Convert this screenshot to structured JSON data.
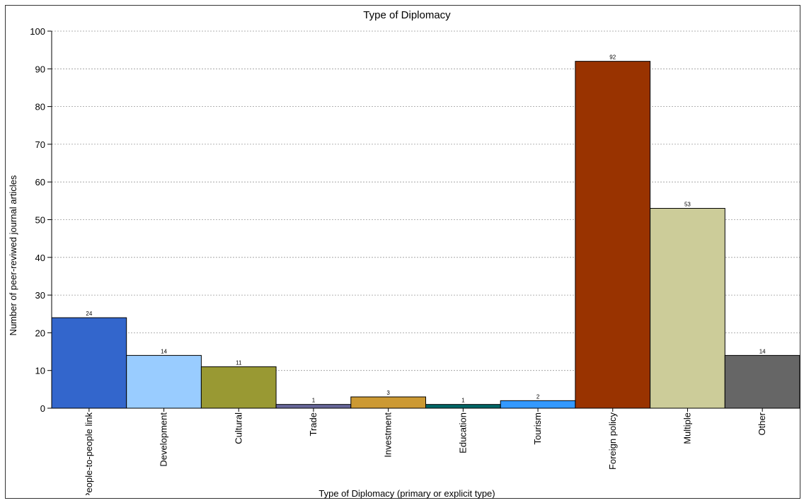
{
  "chart_data": {
    "type": "bar",
    "title": "Type of Diplomacy",
    "xlabel": "Type of Diplomacy (primary or explicit type)",
    "ylabel": "Number of peer-reviwed journal articles",
    "ylim": [
      0,
      100
    ],
    "yticks": [
      "0",
      "10",
      "20",
      "30",
      "40",
      "50",
      "60",
      "70",
      "80",
      "90",
      "100"
    ],
    "grid": true,
    "categories": [
      "People-to-people link",
      "Development",
      "Cultural",
      "Trade",
      "Investment",
      "Education",
      "Tourism",
      "Foreign policy",
      "Multiple",
      "Other"
    ],
    "values": [
      24,
      14,
      11,
      1,
      3,
      1,
      2,
      92,
      53,
      14
    ],
    "colors": [
      "#3366cc",
      "#99ccff",
      "#999933",
      "#666699",
      "#cc9933",
      "#006666",
      "#3399ff",
      "#993300",
      "#cccc99",
      "#666666"
    ]
  }
}
